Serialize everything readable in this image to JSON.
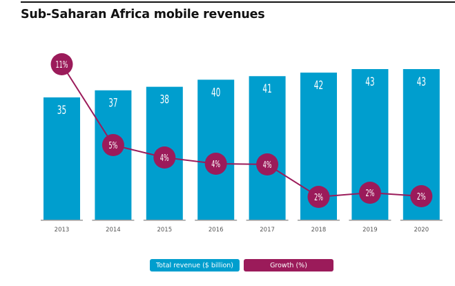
{
  "title": "Sub-Saharan Africa mobile revenues",
  "colors": {
    "revenue": "#009ECE",
    "growth": "#9B1B5A",
    "baseline": "#9a9a9a",
    "tick_text": "#555555"
  },
  "legend": {
    "revenue_label": "Total revenue ($ billion)",
    "growth_label": "Growth (%)"
  },
  "chart_data": {
    "type": "bar",
    "title": "Sub-Saharan Africa mobile revenues",
    "xlabel": "",
    "ylabel": "",
    "categories": [
      "2013",
      "2014",
      "2015",
      "2016",
      "2017",
      "2018",
      "2019",
      "2020"
    ],
    "series": [
      {
        "name": "Total revenue ($ billion)",
        "type": "bar",
        "values": [
          35,
          37,
          38,
          40,
          41,
          42,
          43,
          43
        ],
        "labels": [
          "35",
          "37",
          "38",
          "40",
          "41",
          "42",
          "43",
          "43"
        ]
      },
      {
        "name": "Growth (%)",
        "type": "line",
        "values": [
          11,
          5,
          4,
          4,
          4,
          2,
          2,
          2
        ],
        "labels": [
          "11%",
          "5%",
          "4%",
          "4%",
          "4%",
          "2%",
          "2%",
          "2%"
        ]
      }
    ],
    "grid": false,
    "legend_position": "bottom-center"
  }
}
